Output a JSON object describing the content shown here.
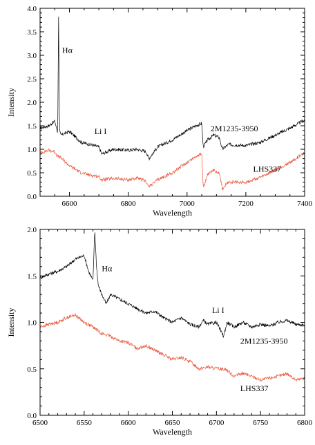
{
  "chart_data": [
    {
      "type": "line",
      "xlabel": "Wavelength",
      "ylabel": "Intensity",
      "xlim": [
        6500,
        7400
      ],
      "ylim": [
        0.0,
        4.0
      ],
      "xticks": [
        "6600",
        "6800",
        "7000",
        "7200",
        "7400"
      ],
      "yticks": [
        "0.0",
        "0.5",
        "1.0",
        "1.5",
        "2.0",
        "2.5",
        "3.0",
        "3.5",
        "4.0"
      ],
      "series": [
        {
          "name": "2M1235-3950",
          "color": "#000000",
          "x": [
            6500,
            6530,
            6550,
            6560,
            6563,
            6566,
            6570,
            6600,
            6640,
            6670,
            6700,
            6710,
            6750,
            6800,
            6830,
            6860,
            6870,
            6900,
            6950,
            7000,
            7030,
            7050,
            7055,
            7070,
            7090,
            7110,
            7120,
            7140,
            7200,
            7250,
            7300,
            7350,
            7400
          ],
          "values": [
            1.45,
            1.5,
            1.6,
            1.35,
            3.85,
            1.4,
            1.3,
            1.38,
            1.15,
            1.1,
            1.05,
            0.9,
            1.0,
            0.98,
            1.0,
            0.95,
            0.8,
            1.05,
            1.2,
            1.4,
            1.5,
            1.55,
            1.05,
            1.2,
            1.3,
            1.25,
            1.0,
            1.1,
            1.08,
            1.15,
            1.3,
            1.45,
            1.62
          ]
        },
        {
          "name": "LHS337",
          "color": "#e8553a",
          "x": [
            6500,
            6530,
            6550,
            6560,
            6570,
            6600,
            6640,
            6670,
            6700,
            6710,
            6750,
            6800,
            6830,
            6860,
            6870,
            6900,
            6950,
            7000,
            7030,
            7050,
            7055,
            7070,
            7090,
            7110,
            7120,
            7140,
            7200,
            7250,
            7300,
            7350,
            7400
          ],
          "values": [
            0.92,
            0.98,
            0.95,
            0.85,
            0.82,
            0.65,
            0.5,
            0.45,
            0.42,
            0.35,
            0.38,
            0.35,
            0.38,
            0.32,
            0.2,
            0.35,
            0.5,
            0.72,
            0.85,
            0.9,
            0.2,
            0.45,
            0.55,
            0.5,
            0.15,
            0.3,
            0.3,
            0.4,
            0.55,
            0.72,
            0.92
          ]
        }
      ],
      "annotations": [
        {
          "text": "Hα",
          "x": 6575,
          "y": 3.05
        },
        {
          "text": "Li I",
          "x": 6685,
          "y": 1.32
        },
        {
          "text": "2M1235-3950",
          "x": 7080,
          "y": 1.38
        },
        {
          "text": "LHS337",
          "x": 7225,
          "y": 0.52
        }
      ]
    },
    {
      "type": "line",
      "xlabel": "Wavelength",
      "ylabel": "Intensity",
      "xlim": [
        6500,
        6800
      ],
      "ylim": [
        0.0,
        2.0
      ],
      "xticks": [
        "6500",
        "6550",
        "6600",
        "6650",
        "6700",
        "6750",
        "6800"
      ],
      "yticks": [
        "0.0",
        "0.5",
        "1.0",
        "1.5",
        "2.0"
      ],
      "series": [
        {
          "name": "2M1235-3950",
          "color": "#000000",
          "x": [
            6500,
            6510,
            6520,
            6530,
            6540,
            6550,
            6555,
            6560,
            6562,
            6564,
            6566,
            6570,
            6575,
            6580,
            6590,
            6600,
            6610,
            6620,
            6630,
            6640,
            6650,
            6660,
            6670,
            6680,
            6685,
            6690,
            6700,
            6708,
            6712,
            6720,
            6730,
            6740,
            6750,
            6760,
            6770,
            6780,
            6790,
            6800
          ],
          "values": [
            1.48,
            1.52,
            1.55,
            1.6,
            1.68,
            1.72,
            1.55,
            1.45,
            2.0,
            1.6,
            1.4,
            1.3,
            1.2,
            1.3,
            1.25,
            1.2,
            1.15,
            1.1,
            1.12,
            1.05,
            1.0,
            1.05,
            0.98,
            0.95,
            1.02,
            0.98,
            1.0,
            0.85,
            1.0,
            0.95,
            1.0,
            0.95,
            0.98,
            0.96,
            1.0,
            1.02,
            0.98,
            0.97
          ]
        },
        {
          "name": "LHS337",
          "color": "#e8553a",
          "x": [
            6500,
            6510,
            6520,
            6530,
            6540,
            6550,
            6560,
            6570,
            6580,
            6590,
            6600,
            6610,
            6620,
            6630,
            6640,
            6650,
            6660,
            6670,
            6680,
            6690,
            6700,
            6710,
            6720,
            6730,
            6740,
            6750,
            6760,
            6770,
            6780,
            6790,
            6800
          ],
          "values": [
            0.95,
            0.98,
            1.0,
            1.05,
            1.08,
            1.0,
            0.95,
            0.88,
            0.85,
            0.8,
            0.78,
            0.72,
            0.75,
            0.7,
            0.65,
            0.6,
            0.62,
            0.58,
            0.5,
            0.52,
            0.5,
            0.5,
            0.42,
            0.45,
            0.42,
            0.38,
            0.4,
            0.42,
            0.45,
            0.38,
            0.4
          ]
        }
      ],
      "annotations": [
        {
          "text": "Hα",
          "x": 6570,
          "y": 1.55
        },
        {
          "text": "Li I",
          "x": 6695,
          "y": 1.1
        },
        {
          "text": "2M1235-3950",
          "x": 6727,
          "y": 0.77
        },
        {
          "text": "LHS337",
          "x": 6727,
          "y": 0.26
        }
      ]
    }
  ]
}
